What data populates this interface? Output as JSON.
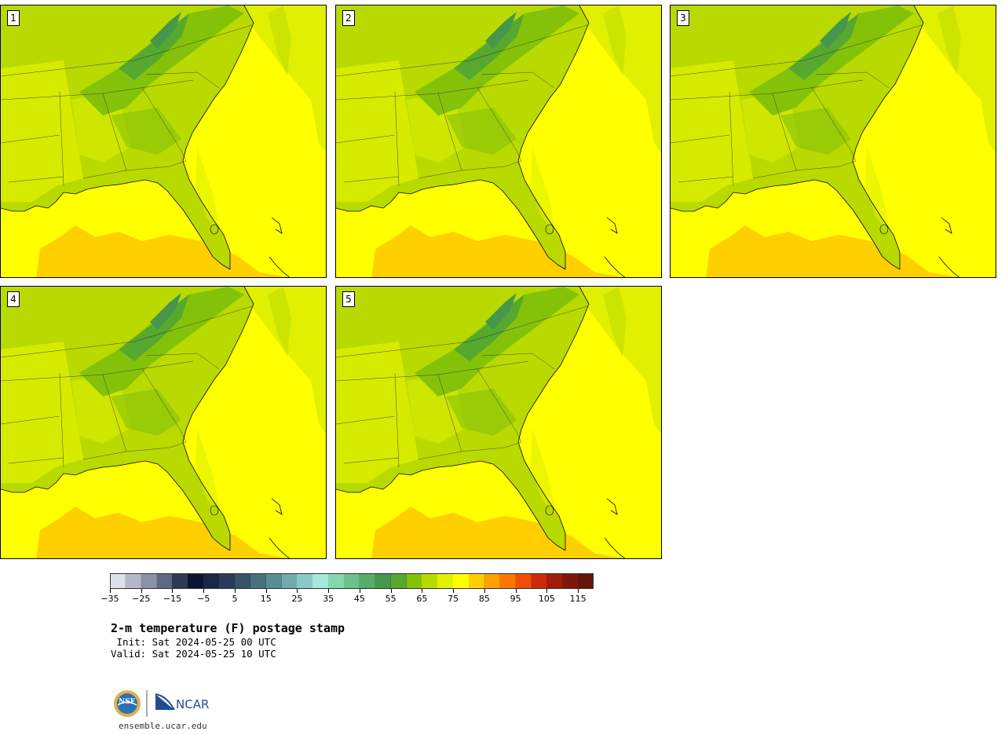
{
  "panels": [
    {
      "label": "1"
    },
    {
      "label": "2"
    },
    {
      "label": "3"
    },
    {
      "label": "4"
    },
    {
      "label": "5"
    }
  ],
  "colorbar": {
    "min": -35,
    "max": 120,
    "step": 5,
    "tick_labels": [
      "−35",
      "−25",
      "−15",
      "−5",
      "5",
      "15",
      "25",
      "35",
      "45",
      "55",
      "65",
      "75",
      "85",
      "95",
      "105",
      "115"
    ],
    "colors": [
      "#dde1ea",
      "#b3b9c9",
      "#8a92a8",
      "#5e6884",
      "#2f3956",
      "#0b1533",
      "#182744",
      "#283c5a",
      "#365368",
      "#46707c",
      "#5a8e95",
      "#72aaae",
      "#8ac9c6",
      "#a4e8dc",
      "#86d6ae",
      "#6cc08c",
      "#59ab6a",
      "#46964b",
      "#56a82f",
      "#84c20a",
      "#b8da00",
      "#e0f000",
      "#ffff00",
      "#ffcf00",
      "#ffa100",
      "#ff7700",
      "#f04e08",
      "#cc2a08",
      "#a11d0a",
      "#7f180c",
      "#621509"
    ]
  },
  "title": "2-m temperature (F) postage stamp",
  "init_line": " Init: Sat 2024-05-25 00 UTC",
  "valid_line": "Valid: Sat 2024-05-25 10 UTC",
  "logos": {
    "nsf": "NSF",
    "ncar": "NCAR"
  },
  "site": "ensemble.ucar.edu"
}
